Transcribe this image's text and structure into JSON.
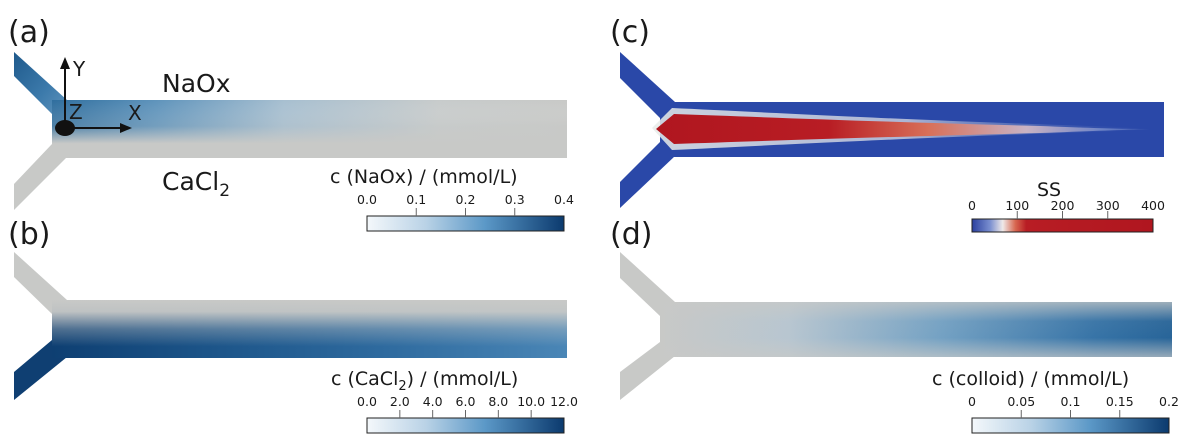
{
  "panels": {
    "a": {
      "label": "(a)",
      "top_stream_label": "NaOx",
      "bottom_stream_label_main": "CaCl",
      "bottom_stream_label_sub": "2",
      "axes": {
        "y": "Y",
        "z": "Z",
        "x": "X"
      },
      "colorbar": {
        "title": "c (NaOx) / (mmol/L)",
        "ticks": [
          "0.0",
          "0.1",
          "0.2",
          "0.3",
          "0.4"
        ]
      }
    },
    "b": {
      "label": "(b)",
      "colorbar": {
        "title_pre": "c (CaCl",
        "title_sub": "2",
        "title_post": ") / (mmol/L)",
        "ticks": [
          "0.0",
          "2.0",
          "4.0",
          "6.0",
          "8.0",
          "10.0",
          "12.0"
        ]
      }
    },
    "c": {
      "label": "(c)",
      "colorbar": {
        "title": "SS",
        "ticks": [
          "0",
          "100",
          "200",
          "300",
          "400"
        ]
      }
    },
    "d": {
      "label": "(d)",
      "colorbar": {
        "title": "c (colloid) / (mmol/L)",
        "ticks": [
          "0",
          "0.05",
          "0.1",
          "0.15",
          "0.2"
        ]
      }
    }
  },
  "colors": {
    "channel_gray": "#c8c9c7",
    "blue_dark": "#0d3f73",
    "blue_mid": "#3f82b6",
    "blue_light": "#eaf2f8",
    "ss_blue": "#2a48a8",
    "ss_red": "#b21a22",
    "ss_white": "#f2efee"
  }
}
